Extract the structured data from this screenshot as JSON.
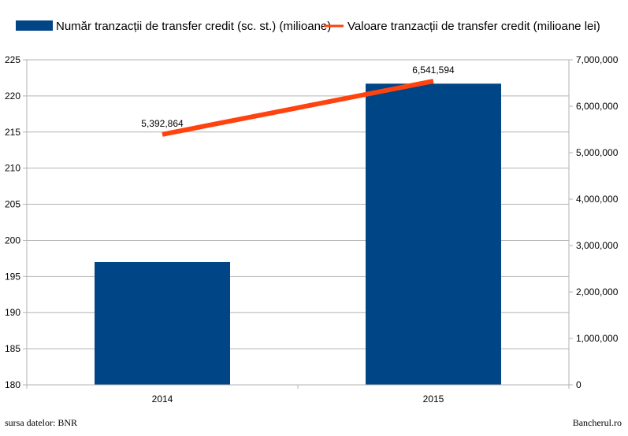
{
  "chart_data": {
    "type": "bar",
    "categories": [
      "2014",
      "2015"
    ],
    "series": [
      {
        "name": "Număr tranzacții de transfer credit (sc. st.) (milioane)",
        "kind": "bar",
        "axis": "left",
        "color": "#004586",
        "values": [
          197.0,
          221.7
        ]
      },
      {
        "name": "Valoare  tranzacții de transfer credit (milioane lei)",
        "kind": "line",
        "axis": "right",
        "color": "#ff420e",
        "values": [
          5392864,
          6541594
        ],
        "labels": [
          "5,392,864",
          "6,541,594"
        ]
      }
    ],
    "y_left": {
      "min": 180,
      "max": 225,
      "ticks": [
        180,
        185,
        190,
        195,
        200,
        205,
        210,
        215,
        220,
        225
      ],
      "tick_labels": [
        "180",
        "185",
        "190",
        "195",
        "200",
        "205",
        "210",
        "215",
        "220",
        "225"
      ]
    },
    "y_right": {
      "min": 0,
      "max": 7000000,
      "ticks": [
        0,
        1000000,
        2000000,
        3000000,
        4000000,
        5000000,
        6000000,
        7000000
      ],
      "tick_labels": [
        "0",
        "1,000,000",
        "2,000,000",
        "3,000,000",
        "4,000,000",
        "5,000,000",
        "6,000,000",
        "7,000,000"
      ]
    },
    "grid": true,
    "legend": "top"
  },
  "footer": {
    "source": "sursa datelor: BNR",
    "site": "Bancherul.ro"
  }
}
